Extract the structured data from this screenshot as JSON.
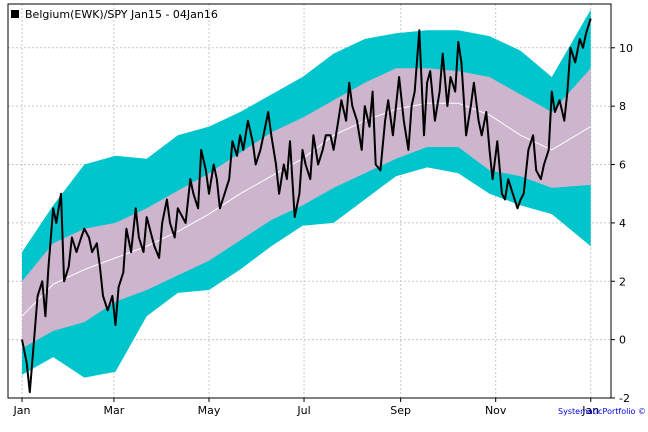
{
  "chart_data": {
    "type": "line",
    "title": "Belgium(EWK)/SPY Jan15 - 04Jan16",
    "xlabel": "",
    "ylabel": "",
    "x_tick_labels": [
      "Jan",
      "Mar",
      "May",
      "Jul",
      "Sep",
      "Nov",
      "Jan"
    ],
    "x_tick_days": [
      0,
      59,
      120,
      181,
      243,
      304,
      365
    ],
    "ylim": [
      -2,
      11.5
    ],
    "y_ticks": [
      -2,
      0,
      2,
      4,
      6,
      8,
      10
    ],
    "grid": true,
    "legend_position": "top-left",
    "credit": "SystematicPortfolio ©",
    "colors": {
      "outer_band": "#00c5cd",
      "inner_band": "#cdb5cd",
      "mean_line": "#ffffff",
      "price_line": "#000000",
      "grid": "#c8c8c8",
      "credit": "#0000ee"
    },
    "series": [
      {
        "name": "Belgium(EWK)/SPY Jan15 - 04Jan16",
        "day": [
          0,
          3,
          5,
          7,
          10,
          13,
          15,
          17,
          20,
          22,
          25,
          27,
          30,
          32,
          35,
          38,
          40,
          43,
          45,
          48,
          50,
          52,
          55,
          58,
          60,
          62,
          65,
          67,
          70,
          73,
          75,
          78,
          80,
          82,
          85,
          88,
          90,
          93,
          95,
          98,
          100,
          103,
          105,
          108,
          110,
          113,
          115,
          118,
          120,
          123,
          125,
          127,
          130,
          133,
          135,
          138,
          140,
          142,
          145,
          148,
          150,
          153,
          155,
          158,
          160,
          163,
          165,
          168,
          170,
          172,
          175,
          178,
          180,
          182,
          185,
          187,
          190,
          193,
          195,
          198,
          200,
          203,
          205,
          208,
          210,
          212,
          215,
          218,
          220,
          223,
          225,
          227,
          230,
          233,
          235,
          238,
          240,
          242,
          245,
          248,
          250,
          252,
          255,
          258,
          260,
          262,
          265,
          268,
          270,
          273,
          275,
          278,
          280,
          282,
          285,
          288,
          290,
          293,
          295,
          298,
          300,
          302,
          305,
          308,
          310,
          312,
          315,
          318,
          320,
          322,
          325,
          328,
          330,
          333,
          335,
          338,
          340,
          342,
          345,
          348,
          350,
          352,
          355,
          358,
          360,
          362,
          365
        ],
        "values": [
          0.0,
          -0.8,
          -1.8,
          -0.5,
          1.5,
          2.0,
          0.8,
          2.5,
          4.5,
          4.0,
          5.0,
          2.0,
          2.5,
          3.5,
          3.0,
          3.5,
          3.8,
          3.5,
          3.0,
          3.3,
          2.5,
          1.5,
          1.0,
          1.5,
          0.5,
          1.8,
          2.3,
          3.8,
          3.0,
          4.5,
          3.5,
          3.0,
          4.2,
          3.8,
          3.2,
          2.8,
          4.0,
          4.8,
          4.0,
          3.5,
          4.5,
          4.2,
          4.0,
          5.5,
          5.0,
          4.5,
          6.5,
          5.8,
          5.0,
          6.0,
          5.5,
          4.5,
          5.0,
          5.5,
          6.8,
          6.3,
          7.0,
          6.5,
          7.5,
          6.8,
          6.0,
          6.5,
          7.0,
          7.8,
          7.0,
          6.0,
          5.0,
          6.0,
          5.5,
          6.8,
          4.2,
          5.0,
          6.5,
          6.0,
          5.5,
          7.0,
          6.0,
          6.5,
          7.0,
          7.0,
          6.5,
          7.5,
          8.2,
          7.5,
          8.8,
          8.0,
          7.5,
          6.5,
          8.0,
          7.3,
          8.5,
          6.0,
          5.8,
          7.5,
          8.2,
          7.0,
          8.0,
          9.0,
          7.5,
          6.5,
          8.0,
          8.5,
          10.6,
          7.0,
          8.8,
          9.2,
          7.5,
          8.5,
          9.8,
          8.0,
          9.0,
          8.5,
          10.2,
          9.5,
          7.0,
          8.0,
          8.8,
          7.5,
          7.0,
          7.8,
          6.5,
          5.5,
          6.8,
          5.0,
          4.8,
          5.5,
          5.0,
          4.5,
          4.8,
          5.0,
          6.5,
          7.0,
          5.8,
          5.5,
          6.0,
          6.5,
          8.5,
          7.8,
          8.2,
          7.5,
          8.5,
          10.0,
          9.5,
          10.3,
          10.0,
          10.5,
          11.0
        ]
      },
      {
        "name": "",
        "day": [
          0,
          20,
          40,
          60,
          80,
          100,
          120,
          140,
          160,
          180,
          200,
          220,
          240,
          260,
          280,
          300,
          320,
          340,
          365
        ],
        "values": [
          0.8,
          1.9,
          2.4,
          2.8,
          3.2,
          3.7,
          4.3,
          5.0,
          5.6,
          6.2,
          7.0,
          7.5,
          7.9,
          8.1,
          8.1,
          7.7,
          7.0,
          6.5,
          7.3
        ]
      }
    ],
    "bands": [
      {
        "name": "",
        "level": "outer",
        "day": [
          0,
          20,
          40,
          60,
          80,
          100,
          120,
          140,
          160,
          180,
          200,
          220,
          240,
          260,
          280,
          300,
          320,
          340,
          365
        ],
        "lower": [
          -1.2,
          -0.6,
          -1.3,
          -1.1,
          0.8,
          1.6,
          1.7,
          2.4,
          3.2,
          3.9,
          4.0,
          4.8,
          5.6,
          5.9,
          5.7,
          5.0,
          4.6,
          4.3,
          3.2
        ],
        "upper": [
          3.0,
          4.6,
          6.0,
          6.3,
          6.2,
          7.0,
          7.3,
          7.8,
          8.4,
          9.0,
          9.8,
          10.3,
          10.5,
          10.6,
          10.6,
          10.4,
          9.9,
          9.0,
          11.3
        ]
      },
      {
        "name": "",
        "level": "inner",
        "day": [
          0,
          20,
          40,
          60,
          80,
          100,
          120,
          140,
          160,
          180,
          200,
          220,
          240,
          260,
          280,
          300,
          320,
          340,
          365
        ],
        "lower": [
          -0.3,
          0.3,
          0.6,
          1.3,
          1.7,
          2.2,
          2.7,
          3.4,
          4.1,
          4.6,
          5.2,
          5.7,
          6.2,
          6.6,
          6.6,
          5.8,
          5.6,
          5.2,
          5.3
        ],
        "upper": [
          2.0,
          3.3,
          3.8,
          4.0,
          4.5,
          5.1,
          5.7,
          6.4,
          7.1,
          7.6,
          8.2,
          8.8,
          9.3,
          9.3,
          9.2,
          9.0,
          8.4,
          7.8,
          9.3
        ]
      }
    ]
  }
}
